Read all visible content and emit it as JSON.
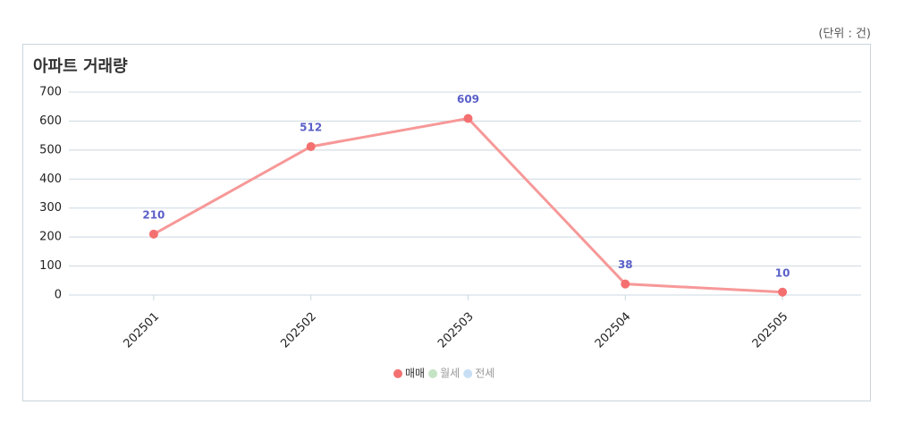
{
  "unit_note": "(단위 : 건)",
  "chart_data": {
    "type": "line",
    "title": "아파트 거래량",
    "categories": [
      "202501",
      "202502",
      "202503",
      "202504",
      "202505"
    ],
    "series": [
      {
        "name": "매매",
        "color": "#f47070",
        "values": [
          210,
          512,
          609,
          38,
          10
        ]
      },
      {
        "name": "월세",
        "color": "#c5e3c5",
        "values": [
          null,
          null,
          null,
          null,
          null
        ]
      },
      {
        "name": "전세",
        "color": "#c8def5",
        "values": [
          null,
          null,
          null,
          null,
          null
        ]
      }
    ],
    "ylim": [
      0,
      700
    ],
    "yticks": [
      0,
      100,
      200,
      300,
      400,
      500,
      600,
      700
    ],
    "grid": true,
    "legend": "bottom"
  }
}
